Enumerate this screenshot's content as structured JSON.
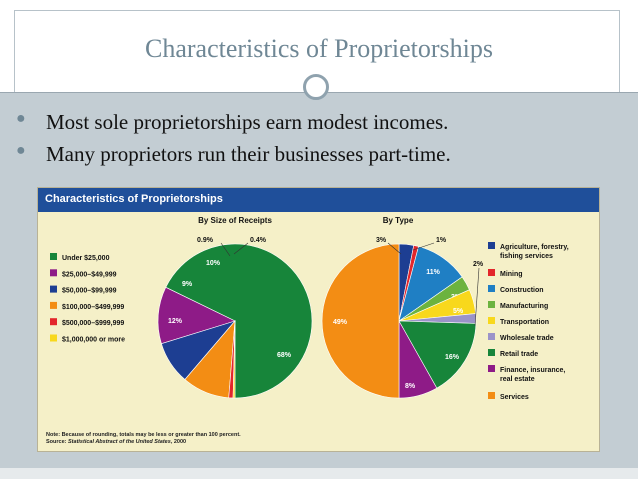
{
  "slide": {
    "title": "Characteristics of Proprietorships",
    "bullets": [
      "Most sole proprietorships earn modest incomes.",
      "Many proprietors run their businesses part-time."
    ]
  },
  "figure": {
    "header": "Characteristics of Proprietorships",
    "note_line1": "Note: Because of rounding, totals may be less or greater than 100 percent.",
    "note_line2_prefix": "Source: ",
    "note_line2_italic": "Statistical Abstract of the United States",
    "note_line2_suffix": ", 2000"
  },
  "chart_data": [
    {
      "type": "pie",
      "title": "By Size of Receipts",
      "slices": [
        {
          "name": "Under $25,000",
          "value": 68,
          "label": "68%",
          "color": "#17853a"
        },
        {
          "name": "$25,000–$49,999",
          "value": 12,
          "label": "12%",
          "color": "#8e1b87"
        },
        {
          "name": "$50,000–$99,999",
          "value": 9,
          "label": "9%",
          "color": "#1d3e92"
        },
        {
          "name": "$100,000–$499,999",
          "value": 10,
          "label": "10%",
          "color": "#f38d14"
        },
        {
          "name": "$500,000–$999,999",
          "value": 0.9,
          "label": "0.9%",
          "color": "#e3262b"
        },
        {
          "name": "$1,000,000 or more",
          "value": 0.4,
          "label": "0.4%",
          "color": "#f8d81c"
        }
      ],
      "legend_placement": "left"
    },
    {
      "type": "pie",
      "title": "By Type",
      "slices": [
        {
          "name": "Agriculture, forestry, fishing services",
          "value": 3,
          "label": "3%",
          "color": "#1d3e92"
        },
        {
          "name": "Mining",
          "value": 1,
          "label": "1%",
          "color": "#e3262b"
        },
        {
          "name": "Construction",
          "value": 11,
          "label": "11%",
          "color": "#1f7fc4"
        },
        {
          "name": "Manufacturing",
          "value": 3,
          "label": "3%",
          "color": "#6cb33f"
        },
        {
          "name": "Transportation",
          "value": 5,
          "label": "5%",
          "color": "#f8d81c"
        },
        {
          "name": "Wholesale trade",
          "value": 2,
          "label": "2%",
          "color": "#9b93c9"
        },
        {
          "name": "Retail trade",
          "value": 16,
          "label": "16%",
          "color": "#17853a"
        },
        {
          "name": "Finance, insurance, real estate",
          "value": 8,
          "label": "8%",
          "color": "#8e1b87"
        },
        {
          "name": "Services",
          "value": 49,
          "label": "49%",
          "color": "#f38d14"
        }
      ],
      "legend_placement": "right"
    }
  ]
}
